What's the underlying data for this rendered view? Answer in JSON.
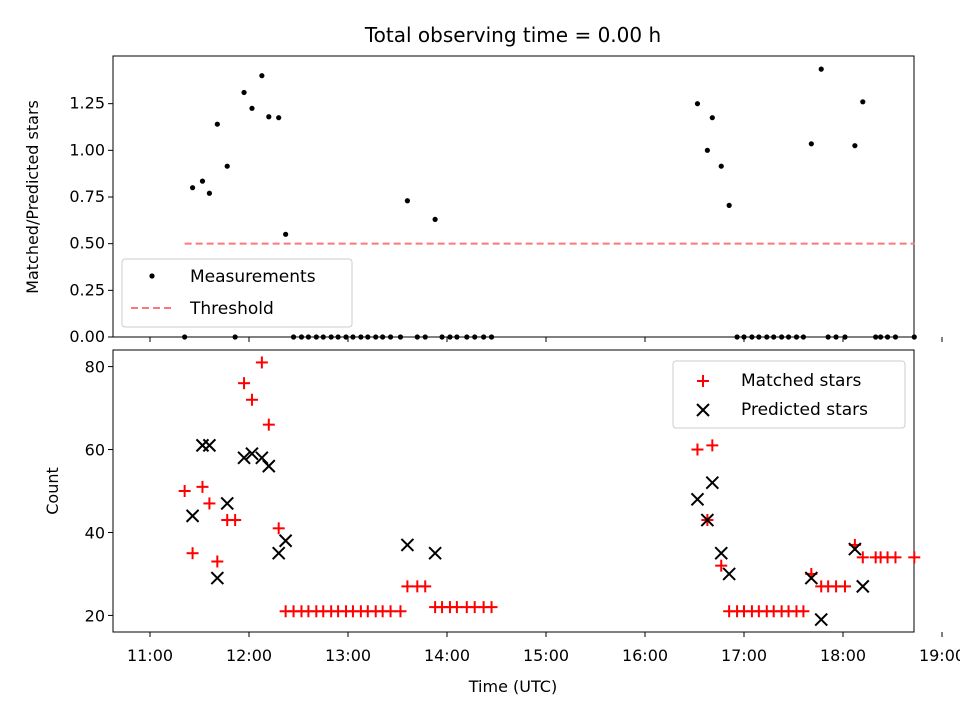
{
  "figure": {
    "title": "Total observing time = 0.00 h"
  },
  "chart_data": [
    {
      "type": "scatter",
      "panel": "top",
      "xlabel": "",
      "ylabel": "Matched/Predicted stars",
      "xlim": [
        11.0,
        19.0
      ],
      "ylim": [
        0.0,
        1.5
      ],
      "yticks": [
        0.0,
        0.25,
        0.5,
        0.75,
        1.0,
        1.25
      ],
      "ytick_labels": [
        "0.00",
        "0.25",
        "0.50",
        "0.75",
        "1.00",
        "1.25"
      ],
      "legend": {
        "placement": "lower-left",
        "entries": [
          "Measurements",
          "Threshold"
        ]
      },
      "series": [
        {
          "name": "Measurements",
          "marker": "dot",
          "color": "#000000",
          "x": [
            11.35,
            11.43,
            11.53,
            11.6,
            11.68,
            11.78,
            11.86,
            11.95,
            12.03,
            12.13,
            12.2,
            12.3,
            12.37,
            12.45,
            12.53,
            12.6,
            12.68,
            12.75,
            12.83,
            12.9,
            12.98,
            13.05,
            13.13,
            13.2,
            13.28,
            13.35,
            13.43,
            13.53,
            13.6,
            13.7,
            13.78,
            13.88,
            13.95,
            14.03,
            14.1,
            14.2,
            14.28,
            14.37,
            14.45,
            16.53,
            16.63,
            16.68,
            16.77,
            16.85,
            16.93,
            17.0,
            17.08,
            17.15,
            17.23,
            17.3,
            17.38,
            17.45,
            17.53,
            17.6,
            17.68,
            17.78,
            17.85,
            17.93,
            18.02,
            18.12,
            18.2,
            18.33,
            18.38,
            18.45,
            18.53,
            18.72
          ],
          "y": [
            0,
            0.8,
            0.835,
            0.77,
            1.14,
            0.915,
            0,
            1.31,
            1.225,
            1.4,
            1.18,
            1.175,
            0.55,
            0,
            0,
            0,
            0,
            0,
            0,
            0,
            0,
            0,
            0,
            0,
            0,
            0,
            0,
            0,
            0.73,
            0,
            0,
            0.63,
            0,
            0,
            0,
            0,
            0,
            0,
            0,
            1.25,
            1.0,
            1.175,
            0.915,
            0.705,
            0,
            0,
            0,
            0,
            0,
            0,
            0,
            0,
            0,
            0,
            1.035,
            1.435,
            0,
            0,
            0,
            1.025,
            1.26,
            0,
            0,
            0,
            0,
            0
          ]
        },
        {
          "name": "Threshold",
          "type": "line",
          "style": "dashed",
          "color": "#ff7777",
          "x": [
            11.35,
            18.72
          ],
          "y": [
            0.5,
            0.5
          ]
        }
      ]
    },
    {
      "type": "scatter",
      "panel": "bottom",
      "xlabel": "Time (UTC)",
      "ylabel": "Count",
      "xlim": [
        11.0,
        19.0
      ],
      "ylim": [
        16,
        84
      ],
      "xticks": [
        11,
        12,
        13,
        14,
        15,
        16,
        17,
        18,
        19
      ],
      "xtick_labels": [
        "11:00",
        "12:00",
        "13:00",
        "14:00",
        "15:00",
        "16:00",
        "17:00",
        "18:00",
        "19:00"
      ],
      "yticks": [
        20,
        40,
        60,
        80
      ],
      "ytick_labels": [
        "20",
        "40",
        "60",
        "80"
      ],
      "legend": {
        "placement": "upper-right",
        "entries": [
          "Matched stars",
          "Predicted stars"
        ]
      },
      "series": [
        {
          "name": "Matched stars",
          "marker": "plus",
          "color": "#ff0000",
          "x": [
            11.35,
            11.43,
            11.53,
            11.6,
            11.68,
            11.78,
            11.86,
            11.95,
            12.03,
            12.13,
            12.2,
            12.3,
            12.37,
            12.45,
            12.53,
            12.6,
            12.68,
            12.75,
            12.83,
            12.9,
            12.98,
            13.05,
            13.13,
            13.2,
            13.28,
            13.35,
            13.43,
            13.53,
            13.6,
            13.7,
            13.78,
            13.88,
            13.95,
            14.03,
            14.1,
            14.2,
            14.28,
            14.37,
            14.45,
            16.53,
            16.63,
            16.68,
            16.77,
            16.85,
            16.93,
            17.0,
            17.08,
            17.15,
            17.23,
            17.3,
            17.38,
            17.45,
            17.53,
            17.6,
            17.68,
            17.78,
            17.85,
            17.93,
            18.02,
            18.12,
            18.2,
            18.33,
            18.38,
            18.45,
            18.53,
            18.72
          ],
          "y": [
            50,
            35,
            51,
            47,
            33,
            43,
            43,
            76,
            72,
            81,
            66,
            41,
            21,
            21,
            21,
            21,
            21,
            21,
            21,
            21,
            21,
            21,
            21,
            21,
            21,
            21,
            21,
            21,
            27,
            27,
            27,
            22,
            22,
            22,
            22,
            22,
            22,
            22,
            22,
            60,
            43,
            61,
            32,
            21,
            21,
            21,
            21,
            21,
            21,
            21,
            21,
            21,
            21,
            21,
            30,
            27,
            27,
            27,
            27,
            37,
            34,
            34,
            34,
            34,
            34,
            34
          ]
        },
        {
          "name": "Predicted stars",
          "marker": "x",
          "color": "#000000",
          "x": [
            11.43,
            11.53,
            11.6,
            11.68,
            11.78,
            11.95,
            12.03,
            12.13,
            12.2,
            12.3,
            12.37,
            13.6,
            13.88,
            16.53,
            16.63,
            16.68,
            16.77,
            16.85,
            17.68,
            17.78,
            18.12,
            18.2
          ],
          "y": [
            44,
            61,
            61,
            29,
            47,
            58,
            59,
            58,
            56,
            35,
            38,
            37,
            35,
            48,
            43,
            52,
            35,
            30,
            29,
            19,
            36,
            27
          ]
        }
      ]
    }
  ]
}
